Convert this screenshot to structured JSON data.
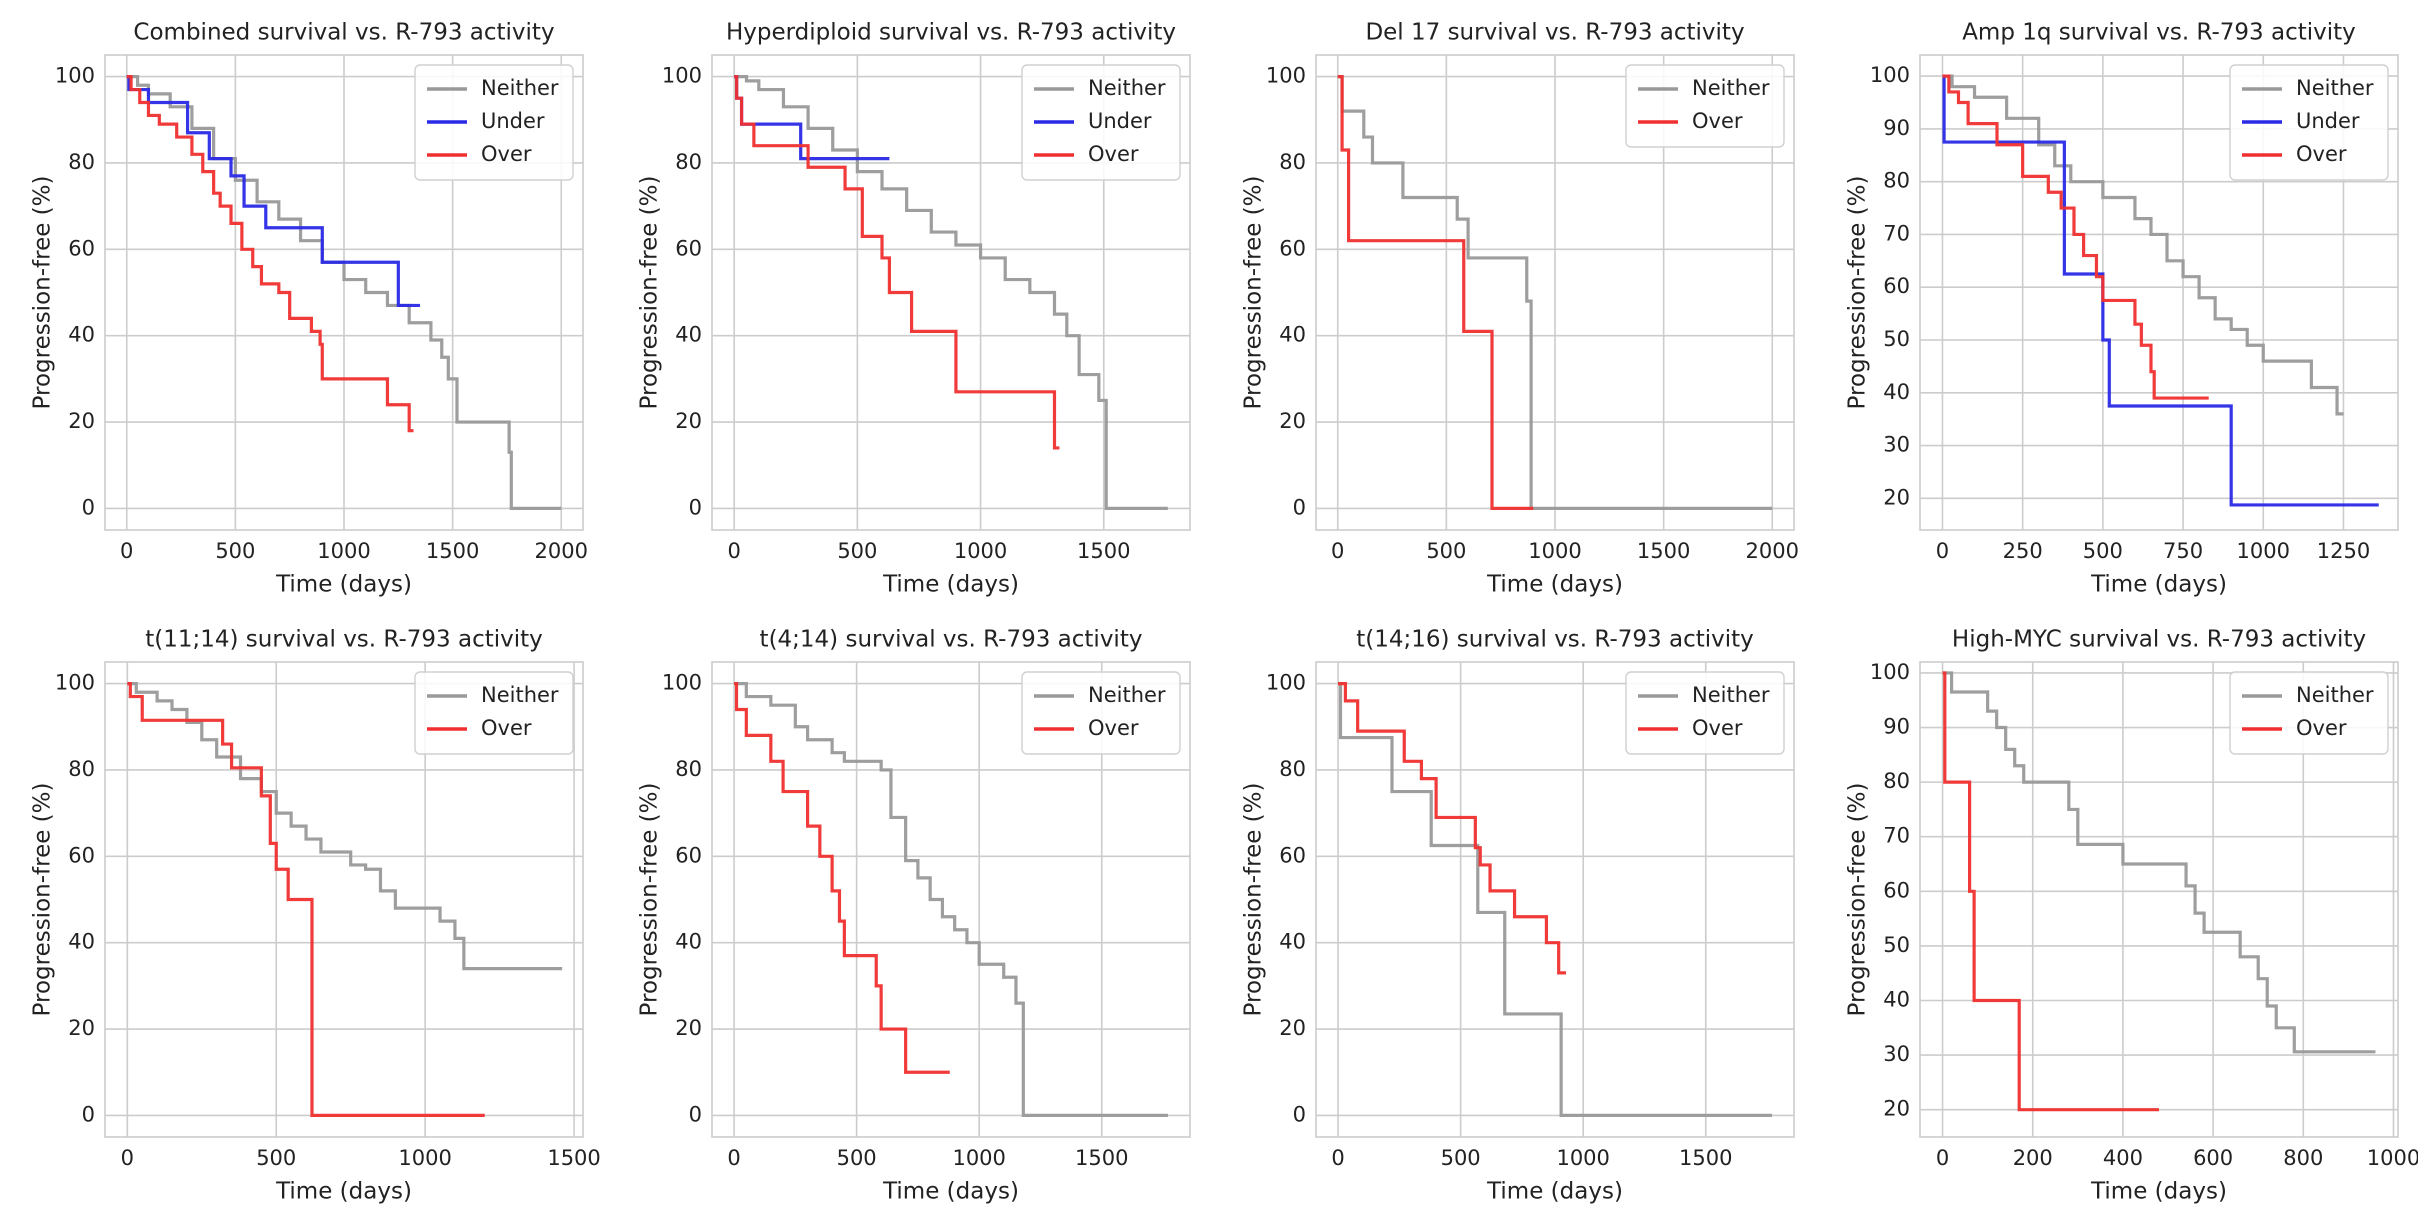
{
  "chart_data": [
    {
      "type": "step",
      "title": "Combined survival vs. R-793 activity",
      "xlabel": "Time (days)",
      "ylabel": "Progression-free (%)",
      "xlim": [
        -100,
        2100
      ],
      "ylim": [
        -5,
        105
      ],
      "xticks": [
        0,
        500,
        1000,
        1500,
        2000
      ],
      "yticks": [
        0,
        20,
        40,
        60,
        80,
        100
      ],
      "grid": true,
      "legend": "upper right",
      "series": [
        {
          "name": "Neither",
          "color": "#999999",
          "x": [
            0,
            50,
            100,
            200,
            300,
            400,
            500,
            600,
            700,
            800,
            900,
            1000,
            1100,
            1200,
            1300,
            1400,
            1450,
            1480,
            1520,
            1760,
            1770,
            2000
          ],
          "values": [
            100,
            98,
            96,
            93,
            88,
            81,
            76,
            71,
            67,
            62,
            57,
            53,
            50,
            47,
            43,
            39,
            35,
            30,
            20,
            13,
            0,
            0
          ]
        },
        {
          "name": "Under",
          "color": "#2a2ae6",
          "x": [
            0,
            10,
            100,
            280,
            380,
            480,
            540,
            640,
            900,
            1250,
            1350
          ],
          "values": [
            100,
            97,
            94,
            87,
            81,
            77,
            70,
            65,
            57,
            47,
            47
          ]
        },
        {
          "name": "Over",
          "color": "#f03030",
          "x": [
            0,
            20,
            60,
            100,
            150,
            230,
            300,
            350,
            400,
            430,
            480,
            530,
            580,
            620,
            700,
            750,
            850,
            890,
            900,
            1200,
            1300,
            1320
          ],
          "values": [
            100,
            97,
            94,
            91,
            89,
            86,
            82,
            78,
            73,
            70,
            66,
            60,
            56,
            52,
            50,
            44,
            41,
            38,
            30,
            24,
            18,
            18
          ]
        }
      ]
    },
    {
      "type": "step",
      "title": "Hyperdiploid survival vs. R-793 activity",
      "xlabel": "Time (days)",
      "ylabel": "Progression-free (%)",
      "xlim": [
        -90,
        1850
      ],
      "ylim": [
        -5,
        105
      ],
      "xticks": [
        0,
        500,
        1000,
        1500
      ],
      "yticks": [
        0,
        20,
        40,
        60,
        80,
        100
      ],
      "grid": true,
      "legend": "upper right",
      "series": [
        {
          "name": "Neither",
          "color": "#999999",
          "x": [
            0,
            50,
            100,
            200,
            300,
            400,
            500,
            600,
            700,
            800,
            900,
            1000,
            1100,
            1200,
            1300,
            1350,
            1400,
            1480,
            1510,
            1760
          ],
          "values": [
            100,
            99,
            97,
            93,
            88,
            83,
            78,
            74,
            69,
            64,
            61,
            58,
            53,
            50,
            45,
            40,
            31,
            25,
            0,
            0
          ]
        },
        {
          "name": "Under",
          "color": "#2a2ae6",
          "x": [
            0,
            10,
            30,
            270,
            630
          ],
          "values": [
            100,
            95,
            89,
            81,
            81
          ]
        },
        {
          "name": "Over",
          "color": "#f03030",
          "x": [
            0,
            10,
            30,
            80,
            300,
            450,
            520,
            600,
            630,
            720,
            900,
            1300,
            1320
          ],
          "values": [
            100,
            95,
            89,
            84,
            79,
            74,
            63,
            58,
            50,
            41,
            27,
            14,
            14
          ]
        }
      ]
    },
    {
      "type": "step",
      "title": "Del 17 survival vs. R-793 activity",
      "xlabel": "Time (days)",
      "ylabel": "Progression-free (%)",
      "xlim": [
        -100,
        2100
      ],
      "ylim": [
        -5,
        105
      ],
      "xticks": [
        0,
        500,
        1000,
        1500,
        2000
      ],
      "yticks": [
        0,
        20,
        40,
        60,
        80,
        100
      ],
      "grid": true,
      "legend": "upper right",
      "series": [
        {
          "name": "Neither",
          "color": "#999999",
          "x": [
            0,
            20,
            120,
            160,
            300,
            550,
            600,
            870,
            890,
            2000
          ],
          "values": [
            100,
            92,
            86,
            80,
            72,
            67,
            58,
            48,
            0,
            0
          ]
        },
        {
          "name": "Over",
          "color": "#f03030",
          "x": [
            0,
            20,
            50,
            580,
            710,
            900
          ],
          "values": [
            100,
            83,
            62,
            41,
            0,
            0
          ]
        }
      ]
    },
    {
      "type": "step",
      "title": "Amp 1q survival vs. R-793 activity",
      "xlabel": "Time (days)",
      "ylabel": "Progression-free (%)",
      "xlim": [
        -70,
        1420
      ],
      "ylim": [
        14,
        104
      ],
      "xticks": [
        0,
        250,
        500,
        750,
        1000,
        1250
      ],
      "yticks": [
        20,
        30,
        40,
        50,
        60,
        70,
        80,
        90,
        100
      ],
      "grid": true,
      "legend": "upper right",
      "series": [
        {
          "name": "Neither",
          "color": "#999999",
          "x": [
            0,
            30,
            100,
            200,
            300,
            350,
            400,
            500,
            600,
            650,
            700,
            750,
            800,
            850,
            900,
            950,
            1000,
            1150,
            1230,
            1250
          ],
          "values": [
            100,
            98,
            96,
            92,
            87,
            83,
            80,
            77,
            73,
            70,
            65,
            62,
            58,
            54,
            52,
            49,
            46,
            41,
            36,
            36
          ]
        },
        {
          "name": "Under",
          "color": "#2a2ae6",
          "x": [
            0,
            5,
            380,
            500,
            520,
            900,
            1360
          ],
          "values": [
            100,
            87.5,
            62.5,
            50,
            37.5,
            18.75,
            18.75
          ]
        },
        {
          "name": "Over",
          "color": "#f03030",
          "x": [
            0,
            20,
            50,
            80,
            170,
            250,
            330,
            370,
            410,
            440,
            480,
            500,
            600,
            620,
            650,
            660,
            830
          ],
          "values": [
            100,
            97,
            95,
            91,
            87,
            81,
            78,
            75,
            70,
            66,
            62,
            57.5,
            53,
            49,
            44,
            39,
            39
          ]
        }
      ]
    },
    {
      "type": "step",
      "title": "t(11;14) survival vs. R-793 activity",
      "xlabel": "Time (days)",
      "ylabel": "Progression-free (%)",
      "xlim": [
        -75,
        1530
      ],
      "ylim": [
        -5,
        105
      ],
      "xticks": [
        0,
        500,
        1000,
        1500
      ],
      "yticks": [
        0,
        20,
        40,
        60,
        80,
        100
      ],
      "grid": true,
      "legend": "upper right",
      "series": [
        {
          "name": "Neither",
          "color": "#999999",
          "x": [
            0,
            30,
            100,
            150,
            200,
            250,
            300,
            380,
            450,
            500,
            550,
            600,
            650,
            750,
            800,
            850,
            900,
            1050,
            1100,
            1130,
            1460
          ],
          "values": [
            100,
            98,
            96,
            94,
            91,
            87,
            83,
            78,
            75,
            70,
            67,
            64,
            61,
            58,
            57,
            52,
            48,
            45,
            41,
            34,
            34
          ]
        },
        {
          "name": "Over",
          "color": "#f03030",
          "x": [
            0,
            10,
            50,
            320,
            350,
            450,
            480,
            500,
            540,
            620,
            1200
          ],
          "values": [
            100,
            97,
            91.5,
            86,
            80.5,
            74,
            63,
            57,
            50,
            0,
            0
          ]
        }
      ]
    },
    {
      "type": "step",
      "title": "t(4;14) survival vs. R-793 activity",
      "xlabel": "Time (days)",
      "ylabel": "Progression-free (%)",
      "xlim": [
        -90,
        1860
      ],
      "ylim": [
        -5,
        105
      ],
      "xticks": [
        0,
        500,
        1000,
        1500
      ],
      "yticks": [
        0,
        20,
        40,
        60,
        80,
        100
      ],
      "grid": true,
      "legend": "upper right",
      "series": [
        {
          "name": "Neither",
          "color": "#999999",
          "x": [
            0,
            50,
            150,
            250,
            300,
            400,
            450,
            600,
            640,
            700,
            750,
            800,
            850,
            900,
            950,
            1000,
            1100,
            1150,
            1180,
            1770
          ],
          "values": [
            100,
            97,
            95,
            90,
            87,
            84,
            82,
            80,
            69,
            59,
            55,
            50,
            46,
            43,
            40,
            35,
            32,
            26,
            0,
            0
          ]
        },
        {
          "name": "Over",
          "color": "#f03030",
          "x": [
            0,
            10,
            50,
            150,
            200,
            300,
            350,
            400,
            430,
            450,
            580,
            600,
            700,
            880
          ],
          "values": [
            100,
            94,
            88,
            82,
            75,
            67,
            60,
            52,
            45,
            37,
            30,
            20,
            10,
            10
          ]
        }
      ]
    },
    {
      "type": "step",
      "title": "t(14;16) survival vs. R-793 activity",
      "xlabel": "Time (days)",
      "ylabel": "Progression-free (%)",
      "xlim": [
        -90,
        1860
      ],
      "ylim": [
        -5,
        105
      ],
      "xticks": [
        0,
        500,
        1000,
        1500
      ],
      "yticks": [
        0,
        20,
        40,
        60,
        80,
        100
      ],
      "grid": true,
      "legend": "upper right",
      "series": [
        {
          "name": "Neither",
          "color": "#999999",
          "x": [
            0,
            10,
            220,
            380,
            570,
            680,
            910,
            1770
          ],
          "values": [
            100,
            87.5,
            75,
            62.5,
            47,
            23.5,
            0,
            0
          ]
        },
        {
          "name": "Over",
          "color": "#f03030",
          "x": [
            0,
            30,
            80,
            270,
            340,
            400,
            560,
            580,
            620,
            720,
            850,
            900,
            930
          ],
          "values": [
            100,
            96,
            89,
            82,
            78,
            69,
            62,
            58,
            52,
            46,
            40,
            33,
            33
          ]
        }
      ]
    },
    {
      "type": "step",
      "title": "High-MYC survival vs. R-793 activity",
      "xlabel": "Time (days)",
      "ylabel": "Progression-free (%)",
      "xlim": [
        -50,
        1010
      ],
      "ylim": [
        15,
        102
      ],
      "xticks": [
        0,
        200,
        400,
        600,
        800,
        1000
      ],
      "yticks": [
        20,
        30,
        40,
        50,
        60,
        70,
        80,
        90,
        100
      ],
      "grid": true,
      "legend": "upper right",
      "series": [
        {
          "name": "Neither",
          "color": "#999999",
          "x": [
            0,
            20,
            100,
            120,
            140,
            160,
            180,
            280,
            300,
            400,
            540,
            560,
            580,
            660,
            700,
            720,
            740,
            780,
            960
          ],
          "values": [
            100,
            96.5,
            93,
            90,
            86,
            83,
            80,
            75,
            68.6,
            65,
            61,
            56,
            52.5,
            48,
            44,
            39,
            35,
            30.6,
            30.6
          ]
        },
        {
          "name": "Over",
          "color": "#f03030",
          "x": [
            0,
            5,
            60,
            70,
            170,
            480
          ],
          "values": [
            100,
            80,
            60,
            40,
            20,
            20
          ]
        }
      ]
    }
  ]
}
